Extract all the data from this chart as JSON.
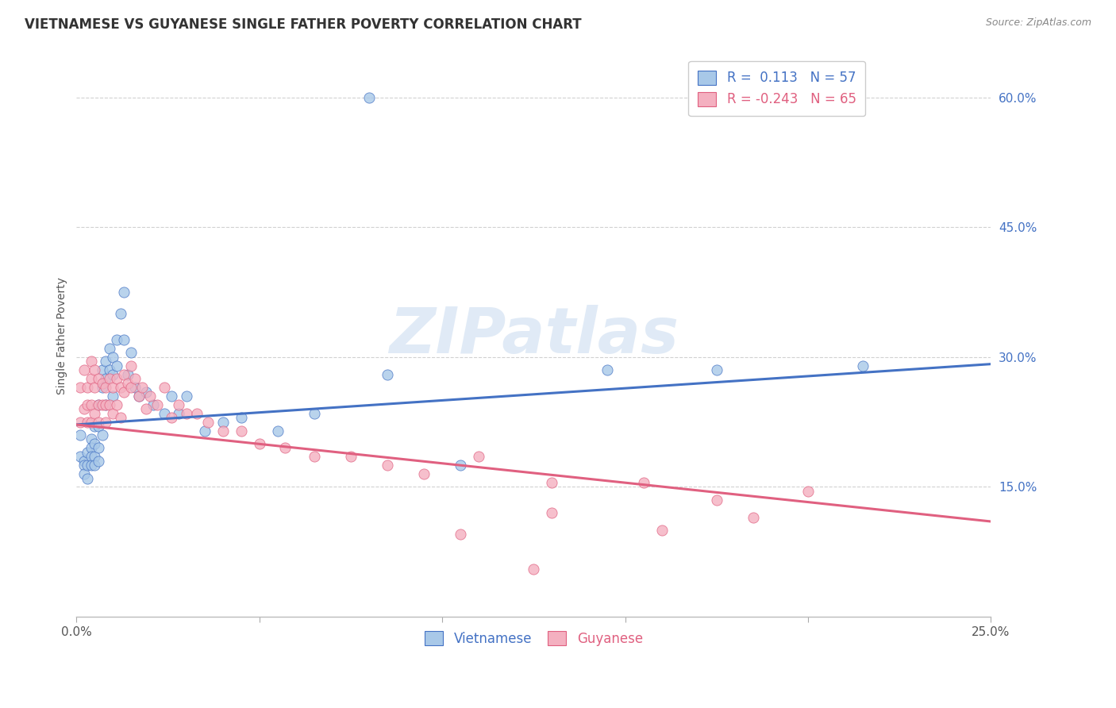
{
  "title": "VIETNAMESE VS GUYANESE SINGLE FATHER POVERTY CORRELATION CHART",
  "source": "Source: ZipAtlas.com",
  "ylabel": "Single Father Poverty",
  "xlim": [
    0.0,
    0.25
  ],
  "ylim": [
    0.0,
    0.65
  ],
  "legend_r_viet": "0.113",
  "legend_n_viet": "57",
  "legend_r_guy": "-0.243",
  "legend_n_guy": "65",
  "viet_color": "#a8c8e8",
  "guy_color": "#f4b0c0",
  "viet_line_color": "#4472c4",
  "guy_line_color": "#e06080",
  "background_color": "#ffffff",
  "grid_color": "#cccccc",
  "title_fontsize": 12,
  "source_fontsize": 9,
  "watermark_text": "ZIPatlas",
  "viet_x": [
    0.001,
    0.001,
    0.002,
    0.002,
    0.002,
    0.003,
    0.003,
    0.003,
    0.004,
    0.004,
    0.004,
    0.004,
    0.005,
    0.005,
    0.005,
    0.005,
    0.006,
    0.006,
    0.006,
    0.006,
    0.007,
    0.007,
    0.007,
    0.008,
    0.008,
    0.008,
    0.009,
    0.009,
    0.01,
    0.01,
    0.01,
    0.011,
    0.011,
    0.012,
    0.013,
    0.013,
    0.014,
    0.015,
    0.016,
    0.017,
    0.019,
    0.021,
    0.024,
    0.026,
    0.028,
    0.03,
    0.035,
    0.04,
    0.045,
    0.055,
    0.065,
    0.08,
    0.105,
    0.145,
    0.175,
    0.215,
    0.085
  ],
  "viet_y": [
    0.21,
    0.185,
    0.18,
    0.175,
    0.165,
    0.19,
    0.175,
    0.16,
    0.205,
    0.195,
    0.185,
    0.175,
    0.22,
    0.2,
    0.185,
    0.175,
    0.245,
    0.22,
    0.195,
    0.18,
    0.285,
    0.265,
    0.21,
    0.295,
    0.275,
    0.245,
    0.31,
    0.285,
    0.3,
    0.28,
    0.255,
    0.32,
    0.29,
    0.35,
    0.375,
    0.32,
    0.28,
    0.305,
    0.265,
    0.255,
    0.26,
    0.245,
    0.235,
    0.255,
    0.235,
    0.255,
    0.215,
    0.225,
    0.23,
    0.215,
    0.235,
    0.6,
    0.175,
    0.285,
    0.285,
    0.29,
    0.28
  ],
  "guy_x": [
    0.001,
    0.001,
    0.002,
    0.002,
    0.003,
    0.003,
    0.003,
    0.004,
    0.004,
    0.004,
    0.004,
    0.005,
    0.005,
    0.005,
    0.006,
    0.006,
    0.006,
    0.007,
    0.007,
    0.008,
    0.008,
    0.008,
    0.009,
    0.009,
    0.01,
    0.01,
    0.011,
    0.011,
    0.012,
    0.012,
    0.013,
    0.013,
    0.014,
    0.015,
    0.015,
    0.016,
    0.017,
    0.018,
    0.019,
    0.02,
    0.022,
    0.024,
    0.026,
    0.028,
    0.03,
    0.033,
    0.036,
    0.04,
    0.045,
    0.05,
    0.057,
    0.065,
    0.075,
    0.085,
    0.095,
    0.11,
    0.13,
    0.155,
    0.175,
    0.2,
    0.16,
    0.185,
    0.13,
    0.105,
    0.125
  ],
  "guy_y": [
    0.265,
    0.225,
    0.285,
    0.24,
    0.265,
    0.245,
    0.225,
    0.295,
    0.275,
    0.245,
    0.225,
    0.285,
    0.265,
    0.235,
    0.275,
    0.245,
    0.225,
    0.27,
    0.245,
    0.265,
    0.245,
    0.225,
    0.275,
    0.245,
    0.265,
    0.235,
    0.275,
    0.245,
    0.265,
    0.23,
    0.28,
    0.26,
    0.27,
    0.29,
    0.265,
    0.275,
    0.255,
    0.265,
    0.24,
    0.255,
    0.245,
    0.265,
    0.23,
    0.245,
    0.235,
    0.235,
    0.225,
    0.215,
    0.215,
    0.2,
    0.195,
    0.185,
    0.185,
    0.175,
    0.165,
    0.185,
    0.155,
    0.155,
    0.135,
    0.145,
    0.1,
    0.115,
    0.12,
    0.095,
    0.055
  ]
}
